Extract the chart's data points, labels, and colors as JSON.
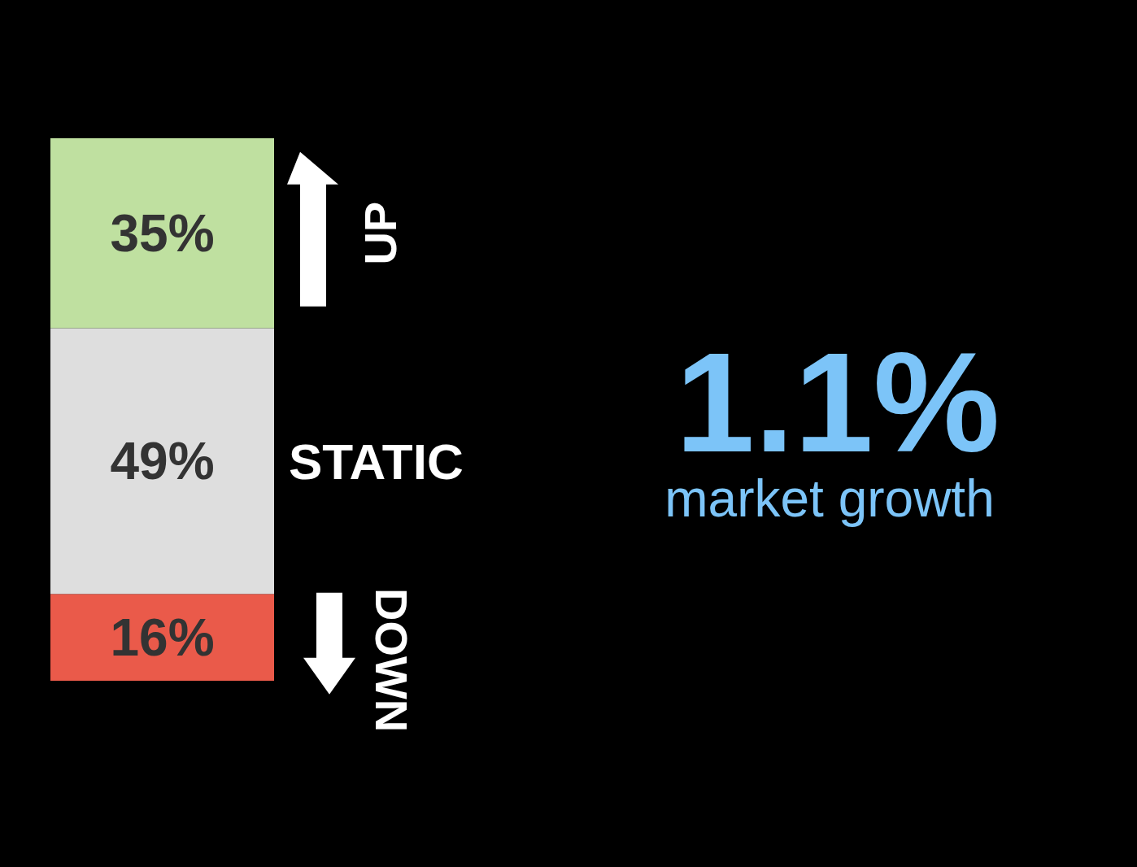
{
  "chart_data": {
    "type": "bar",
    "stacked": true,
    "categories": [
      null
    ],
    "legend": false,
    "series": [
      {
        "name": "DOWN",
        "color": "#ea5a4a",
        "values": [
          16
        ],
        "value_labels": [
          "16%"
        ]
      },
      {
        "name": "STATIC",
        "color": "#dedede",
        "values": [
          49
        ],
        "value_labels": [
          "49%"
        ]
      },
      {
        "name": "UP",
        "color": "#bfe0a0",
        "values": [
          35
        ],
        "value_labels": [
          "35%"
        ]
      }
    ],
    "annotations": [
      "1.1%",
      "market growth"
    ]
  }
}
